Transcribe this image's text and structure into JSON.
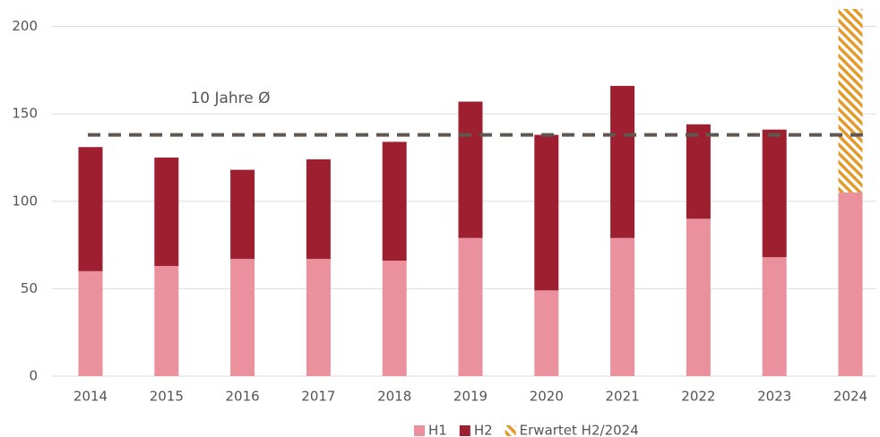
{
  "chart_data": {
    "type": "stacked_bar",
    "categories": [
      "2014",
      "2015",
      "2016",
      "2017",
      "2018",
      "2019",
      "2020",
      "2021",
      "2022",
      "2023",
      "2024"
    ],
    "series": [
      {
        "name": "H1",
        "color": "#eb919d",
        "values": [
          60,
          63,
          67,
          67,
          66,
          79,
          49,
          79,
          90,
          68,
          105
        ]
      },
      {
        "name": "H2",
        "color": "#9e1f30",
        "values": [
          71,
          62,
          51,
          57,
          68,
          78,
          89,
          87,
          54,
          73,
          null
        ]
      },
      {
        "name": "Erwartet H2/2024",
        "color": "#e39a2a",
        "hatched": true,
        "values": [
          null,
          null,
          null,
          null,
          null,
          null,
          null,
          null,
          null,
          null,
          105
        ]
      }
    ],
    "average": {
      "label": "10 Jahre Ø",
      "value": 138,
      "color": "#5f5750"
    },
    "ylim": [
      0,
      210
    ],
    "yticks": [
      0,
      50,
      100,
      150,
      200
    ],
    "grid": true,
    "legend": "bottom"
  }
}
